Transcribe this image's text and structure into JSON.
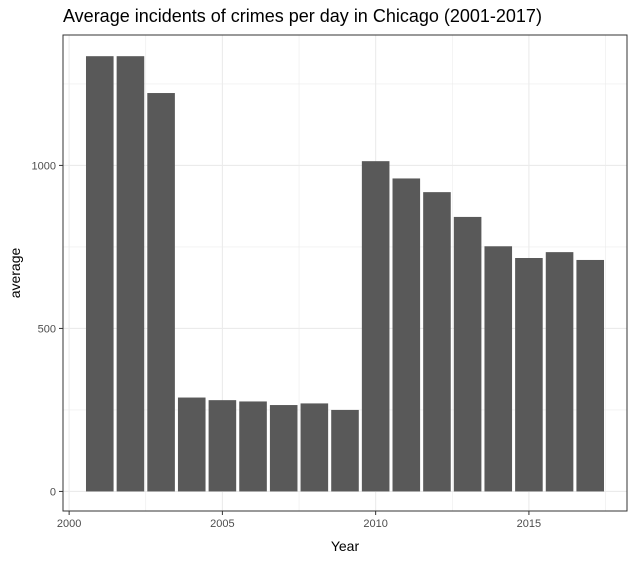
{
  "chart_data": {
    "type": "bar",
    "title": "Average incidents of crimes per day in Chicago (2001-2017)",
    "xlabel": "Year",
    "ylabel": "average",
    "x": [
      2001,
      2002,
      2003,
      2004,
      2005,
      2006,
      2007,
      2008,
      2009,
      2010,
      2011,
      2012,
      2013,
      2014,
      2015,
      2016,
      2017
    ],
    "values": [
      1335,
      1335,
      1222,
      288,
      280,
      276,
      265,
      270,
      250,
      1013,
      960,
      918,
      842,
      752,
      716,
      734,
      710
    ],
    "xlim": [
      1999.8,
      2018.2
    ],
    "ylim": [
      -60,
      1400
    ],
    "x_ticks": [
      2000,
      2005,
      2010,
      2015
    ],
    "y_ticks": [
      0,
      500,
      1000
    ],
    "grid": true,
    "bar_color": "#595959",
    "panel_border_color": "#333333",
    "grid_color": "#ebebeb"
  }
}
